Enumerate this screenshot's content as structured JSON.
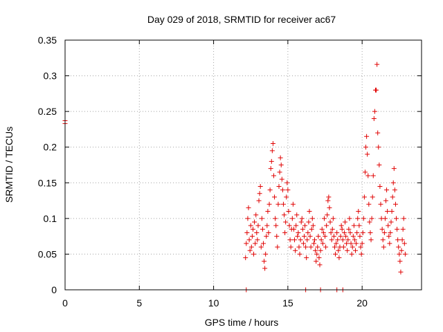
{
  "chart_data": {
    "type": "scatter",
    "title": "Day 029 of 2018, SRMTID for receiver ac67",
    "xlabel": "GPS time / hours",
    "ylabel": "SRMTID / TECUs",
    "xlim": [
      0,
      24
    ],
    "ylim": [
      0,
      0.35
    ],
    "xticks": [
      0,
      5,
      10,
      15,
      20
    ],
    "xtick_labels": [
      "0",
      "5",
      "10",
      "15",
      "20"
    ],
    "yticks": [
      0,
      0.05,
      0.1,
      0.15,
      0.2,
      0.25,
      0.3,
      0.35
    ],
    "ytick_labels": [
      "0",
      "0.05",
      "0.1",
      "0.15",
      "0.2",
      "0.25",
      "0.3",
      "0.35"
    ],
    "grid": true,
    "legend": "none",
    "marker": "plus",
    "marker_color": "#e00000",
    "series": [
      {
        "name": "SRMTID",
        "points": [
          [
            0.0,
            0.237
          ],
          [
            0.0,
            0.233
          ],
          [
            12.2,
            0.0
          ],
          [
            16.2,
            0.0
          ],
          [
            17.2,
            0.0
          ],
          [
            18.3,
            0.0
          ],
          [
            18.7,
            0.0
          ],
          [
            12.15,
            0.045
          ],
          [
            12.2,
            0.065
          ],
          [
            12.25,
            0.08
          ],
          [
            12.3,
            0.1
          ],
          [
            12.35,
            0.115
          ],
          [
            12.4,
            0.07
          ],
          [
            12.45,
            0.055
          ],
          [
            12.5,
            0.09
          ],
          [
            12.55,
            0.06
          ],
          [
            12.6,
            0.075
          ],
          [
            12.65,
            0.085
          ],
          [
            12.7,
            0.05
          ],
          [
            12.75,
            0.095
          ],
          [
            12.8,
            0.065
          ],
          [
            12.85,
            0.105
          ],
          [
            12.9,
            0.08
          ],
          [
            12.95,
            0.07
          ],
          [
            13.0,
            0.09
          ],
          [
            13.05,
            0.125
          ],
          [
            13.1,
            0.135
          ],
          [
            13.15,
            0.145
          ],
          [
            13.2,
            0.06
          ],
          [
            13.25,
            0.1
          ],
          [
            13.3,
            0.085
          ],
          [
            13.35,
            0.065
          ],
          [
            13.4,
            0.04
          ],
          [
            13.45,
            0.03
          ],
          [
            13.5,
            0.05
          ],
          [
            13.55,
            0.075
          ],
          [
            13.6,
            0.09
          ],
          [
            13.65,
            0.11
          ],
          [
            13.7,
            0.08
          ],
          [
            13.75,
            0.12
          ],
          [
            13.8,
            0.14
          ],
          [
            13.85,
            0.17
          ],
          [
            13.9,
            0.18
          ],
          [
            13.95,
            0.195
          ],
          [
            14.0,
            0.205
          ],
          [
            14.05,
            0.16
          ],
          [
            14.1,
            0.13
          ],
          [
            14.15,
            0.1
          ],
          [
            14.2,
            0.09
          ],
          [
            14.25,
            0.075
          ],
          [
            14.3,
            0.06
          ],
          [
            14.35,
            0.12
          ],
          [
            14.4,
            0.145
          ],
          [
            14.45,
            0.165
          ],
          [
            14.5,
            0.185
          ],
          [
            14.55,
            0.175
          ],
          [
            14.6,
            0.155
          ],
          [
            14.65,
            0.14
          ],
          [
            14.7,
            0.12
          ],
          [
            14.75,
            0.105
          ],
          [
            14.8,
            0.08
          ],
          [
            14.85,
            0.095
          ],
          [
            14.9,
            0.13
          ],
          [
            14.95,
            0.15
          ],
          [
            15.0,
            0.14
          ],
          [
            15.05,
            0.11
          ],
          [
            15.1,
            0.09
          ],
          [
            15.15,
            0.07
          ],
          [
            15.2,
            0.06
          ],
          [
            15.25,
            0.085
          ],
          [
            15.3,
            0.1
          ],
          [
            15.35,
            0.12
          ],
          [
            15.4,
            0.085
          ],
          [
            15.45,
            0.07
          ],
          [
            15.5,
            0.055
          ],
          [
            15.55,
            0.09
          ],
          [
            15.6,
            0.105
          ],
          [
            15.65,
            0.075
          ],
          [
            15.7,
            0.08
          ],
          [
            15.75,
            0.06
          ],
          [
            15.8,
            0.05
          ],
          [
            15.85,
            0.07
          ],
          [
            15.9,
            0.095
          ],
          [
            15.95,
            0.1
          ],
          [
            16.0,
            0.085
          ],
          [
            16.05,
            0.065
          ],
          [
            16.1,
            0.075
          ],
          [
            16.15,
            0.09
          ],
          [
            16.2,
            0.06
          ],
          [
            16.25,
            0.045
          ],
          [
            16.3,
            0.07
          ],
          [
            16.35,
            0.08
          ],
          [
            16.4,
            0.095
          ],
          [
            16.45,
            0.11
          ],
          [
            16.5,
            0.075
          ],
          [
            16.55,
            0.06
          ],
          [
            16.6,
            0.085
          ],
          [
            16.65,
            0.1
          ],
          [
            16.7,
            0.09
          ],
          [
            16.75,
            0.065
          ],
          [
            16.8,
            0.07
          ],
          [
            16.85,
            0.055
          ],
          [
            16.9,
            0.04
          ],
          [
            16.95,
            0.05
          ],
          [
            17.0,
            0.06
          ],
          [
            17.05,
            0.075
          ],
          [
            17.1,
            0.045
          ],
          [
            17.15,
            0.035
          ],
          [
            17.2,
            0.055
          ],
          [
            17.25,
            0.07
          ],
          [
            17.3,
            0.085
          ],
          [
            17.35,
            0.065
          ],
          [
            17.4,
            0.08
          ],
          [
            17.45,
            0.1
          ],
          [
            17.5,
            0.075
          ],
          [
            17.55,
            0.06
          ],
          [
            17.6,
            0.09
          ],
          [
            17.65,
            0.105
          ],
          [
            17.7,
            0.125
          ],
          [
            17.75,
            0.13
          ],
          [
            17.8,
            0.115
          ],
          [
            17.85,
            0.095
          ],
          [
            17.9,
            0.08
          ],
          [
            17.95,
            0.07
          ],
          [
            18.0,
            0.085
          ],
          [
            18.05,
            0.1
          ],
          [
            18.1,
            0.075
          ],
          [
            18.15,
            0.06
          ],
          [
            18.2,
            0.05
          ],
          [
            18.25,
            0.065
          ],
          [
            18.3,
            0.08
          ],
          [
            18.35,
            0.07
          ],
          [
            18.4,
            0.055
          ],
          [
            18.45,
            0.045
          ],
          [
            18.5,
            0.06
          ],
          [
            18.55,
            0.075
          ],
          [
            18.6,
            0.09
          ],
          [
            18.65,
            0.085
          ],
          [
            18.7,
            0.07
          ],
          [
            18.75,
            0.06
          ],
          [
            18.8,
            0.08
          ],
          [
            18.85,
            0.095
          ],
          [
            18.9,
            0.075
          ],
          [
            18.95,
            0.065
          ],
          [
            19.0,
            0.055
          ],
          [
            19.05,
            0.07
          ],
          [
            19.1,
            0.085
          ],
          [
            19.15,
            0.1
          ],
          [
            19.2,
            0.08
          ],
          [
            19.25,
            0.065
          ],
          [
            19.3,
            0.05
          ],
          [
            19.35,
            0.06
          ],
          [
            19.4,
            0.075
          ],
          [
            19.45,
            0.09
          ],
          [
            19.5,
            0.07
          ],
          [
            19.55,
            0.055
          ],
          [
            19.6,
            0.065
          ],
          [
            19.65,
            0.08
          ],
          [
            19.7,
            0.1
          ],
          [
            19.75,
            0.11
          ],
          [
            19.8,
            0.09
          ],
          [
            19.85,
            0.075
          ],
          [
            19.9,
            0.06
          ],
          [
            19.95,
            0.05
          ],
          [
            20.0,
            0.065
          ],
          [
            20.05,
            0.08
          ],
          [
            20.1,
            0.1
          ],
          [
            20.15,
            0.13
          ],
          [
            20.2,
            0.165
          ],
          [
            20.25,
            0.2
          ],
          [
            20.3,
            0.215
          ],
          [
            20.35,
            0.19
          ],
          [
            20.4,
            0.16
          ],
          [
            20.45,
            0.12
          ],
          [
            20.5,
            0.095
          ],
          [
            20.55,
            0.08
          ],
          [
            20.6,
            0.07
          ],
          [
            20.65,
            0.1
          ],
          [
            20.7,
            0.13
          ],
          [
            20.75,
            0.16
          ],
          [
            20.8,
            0.24
          ],
          [
            20.85,
            0.25
          ],
          [
            20.9,
            0.28
          ],
          [
            20.95,
            0.28
          ],
          [
            21.0,
            0.316
          ],
          [
            21.05,
            0.22
          ],
          [
            21.1,
            0.2
          ],
          [
            21.15,
            0.175
          ],
          [
            21.2,
            0.145
          ],
          [
            21.25,
            0.12
          ],
          [
            21.3,
            0.1
          ],
          [
            21.35,
            0.085
          ],
          [
            21.4,
            0.07
          ],
          [
            21.45,
            0.06
          ],
          [
            21.5,
            0.08
          ],
          [
            21.55,
            0.1
          ],
          [
            21.6,
            0.125
          ],
          [
            21.65,
            0.14
          ],
          [
            21.7,
            0.11
          ],
          [
            21.75,
            0.09
          ],
          [
            21.8,
            0.075
          ],
          [
            21.85,
            0.065
          ],
          [
            21.9,
            0.08
          ],
          [
            21.95,
            0.095
          ],
          [
            22.0,
            0.11
          ],
          [
            22.05,
            0.13
          ],
          [
            22.1,
            0.15
          ],
          [
            22.15,
            0.17
          ],
          [
            22.2,
            0.14
          ],
          [
            22.25,
            0.12
          ],
          [
            22.3,
            0.1
          ],
          [
            22.35,
            0.085
          ],
          [
            22.4,
            0.07
          ],
          [
            22.45,
            0.06
          ],
          [
            22.5,
            0.05
          ],
          [
            22.55,
            0.04
          ],
          [
            22.6,
            0.025
          ],
          [
            22.65,
            0.055
          ],
          [
            22.7,
            0.07
          ],
          [
            22.75,
            0.085
          ],
          [
            22.8,
            0.1
          ],
          [
            22.85,
            0.065
          ],
          [
            22.9,
            0.05
          ]
        ]
      }
    ]
  }
}
